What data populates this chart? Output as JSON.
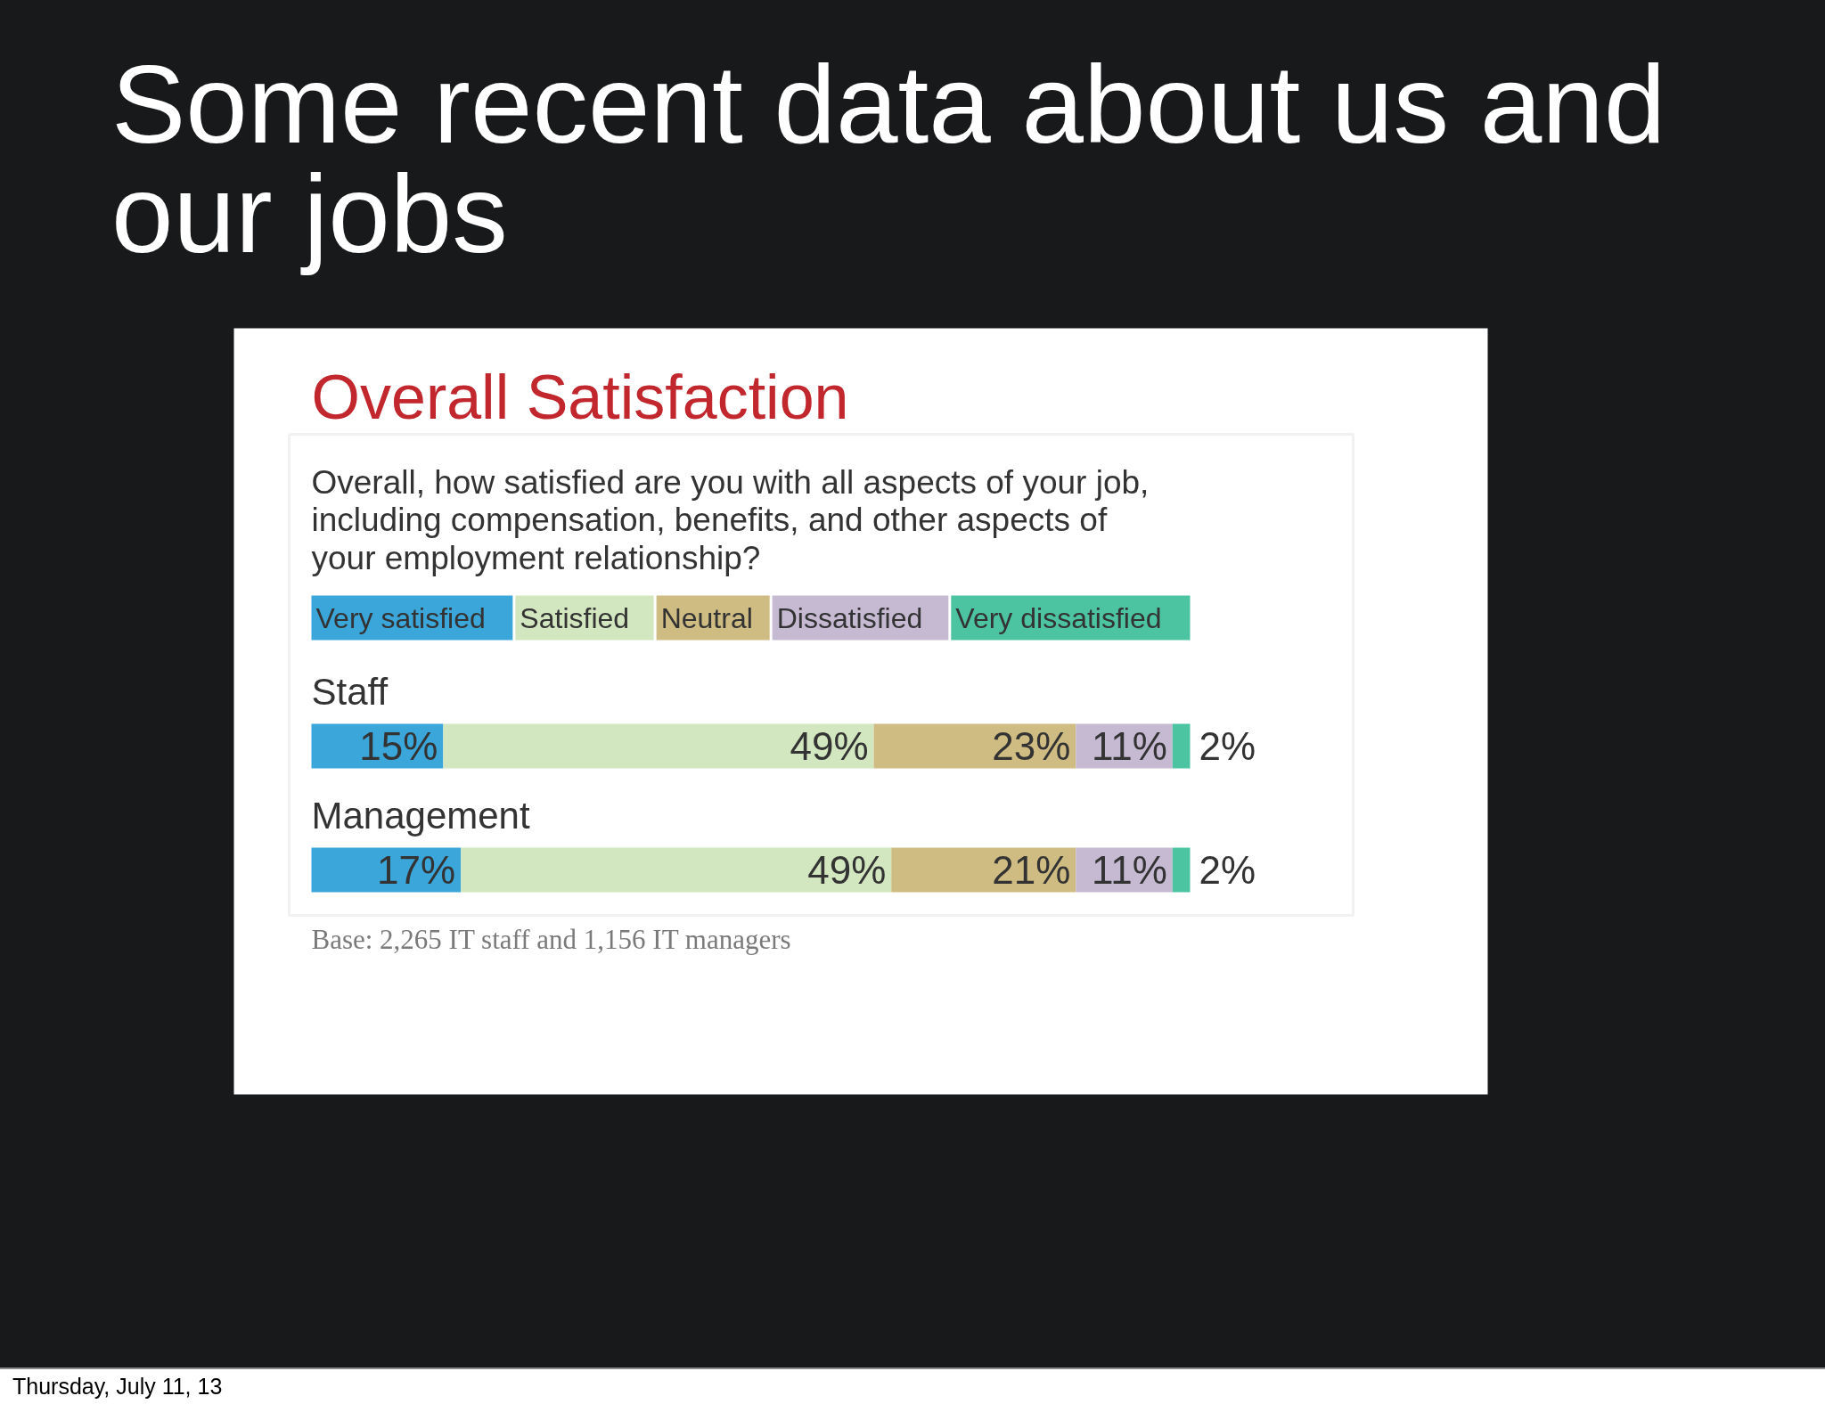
{
  "chart_data": {
    "type": "bar",
    "orientation": "horizontal",
    "stacked": true,
    "title": "Overall Satisfaction",
    "subtitle": "Overall, how satisfied are you with all aspects of your job,\nincluding compensation, benefits, and other aspects of\nyour employment relationship?",
    "categories": [
      "Staff",
      "Management"
    ],
    "series": [
      {
        "name": "Very satisfied",
        "color": "#3aa6da",
        "values": [
          15,
          17
        ],
        "value_labels": [
          "15%",
          "17%"
        ]
      },
      {
        "name": "Satisfied",
        "color": "#d2e7bf",
        "values": [
          49,
          49
        ],
        "value_labels": [
          "49%",
          "49%"
        ]
      },
      {
        "name": "Neutral",
        "color": "#cfbc83",
        "values": [
          23,
          21
        ],
        "value_labels": [
          "23%",
          "21%"
        ]
      },
      {
        "name": "Dissatisfied",
        "color": "#c6bad3",
        "values": [
          11,
          11
        ],
        "value_labels": [
          "11%",
          "11%"
        ]
      },
      {
        "name": "Very dissatisfied",
        "color": "#4cc4a2",
        "values": [
          2,
          2
        ],
        "value_labels": [
          "2%",
          "2%"
        ]
      }
    ],
    "legend": "top",
    "annotations": [
      "Some recent data about us and our jobs",
      "Base: 2,265 IT staff and 1,156 IT managers",
      "Thursday, July 11, 13"
    ]
  }
}
